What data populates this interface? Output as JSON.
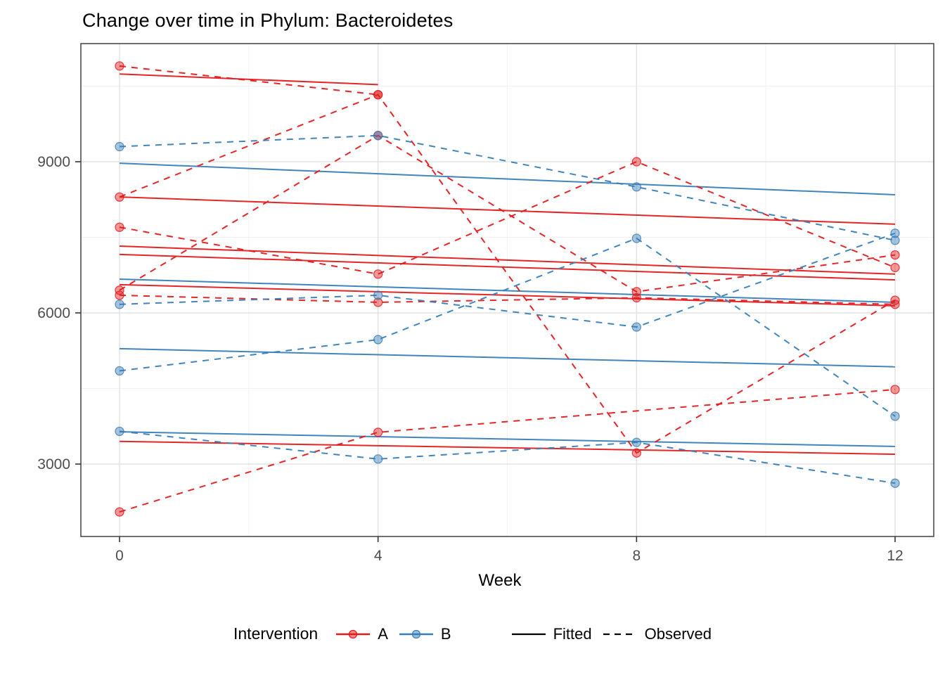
{
  "title": "Change over time in Phylum: Bacteroidetes",
  "axes": {
    "x": {
      "label": "Week",
      "ticks": [
        0,
        4,
        8,
        12
      ],
      "minor_ticks": [
        2,
        6,
        10
      ],
      "range": [
        0,
        12
      ]
    },
    "y": {
      "ticks": [
        3000,
        6000,
        9000
      ],
      "minor_ticks": [
        4500,
        7500,
        10500
      ],
      "range": [
        1565,
        11345
      ]
    }
  },
  "legend": {
    "title": "Intervention",
    "groups": [
      {
        "label": "A",
        "color": "#E41A1C"
      },
      {
        "label": "B",
        "color": "#377EB8"
      }
    ],
    "linetypes": [
      {
        "label": "Fitted",
        "style": "solid"
      },
      {
        "label": "Observed",
        "style": "dashed"
      }
    ]
  },
  "colors": {
    "A": "#E41A1C",
    "B": "#377EB8",
    "grid_major": "#e4e4e4",
    "grid_minor": "#f1f1f1",
    "panel_border": "#333333",
    "tick_text": "#4d4d4d"
  },
  "chart_data": {
    "type": "line",
    "title": "Change over time in Phylum: Bacteroidetes",
    "xlabel": "Week",
    "ylabel": "",
    "x": [
      0,
      4,
      8,
      12
    ],
    "xlim": [
      -0.6,
      12.6
    ],
    "ylim": [
      1565,
      11345
    ],
    "grid": true,
    "legend_position": "bottom",
    "series_meaning": "Each subject has an Observed dashed line (points at measured weeks; null = missing visit) and a Fitted solid line segment spanning its observed range.",
    "subjects": [
      {
        "id": "A1",
        "intervention": "A",
        "observed": [
          10900,
          10330,
          null,
          null
        ],
        "fitted_weeks": [
          0,
          4
        ],
        "fitted": [
          10740,
          10530
        ]
      },
      {
        "id": "A2",
        "intervention": "A",
        "observed": [
          8300,
          10330,
          3220,
          6250
        ],
        "fitted_weeks": [
          0,
          12
        ],
        "fitted": [
          8300,
          7760
        ]
      },
      {
        "id": "A3",
        "intervention": "A",
        "observed": [
          7700,
          6770,
          9000,
          6900
        ],
        "fitted_weeks": [
          0,
          12
        ],
        "fitted": [
          7325,
          6770
        ]
      },
      {
        "id": "A4",
        "intervention": "A",
        "observed": [
          6450,
          9520,
          6420,
          7150
        ],
        "fitted_weeks": [
          0,
          12
        ],
        "fitted": [
          7160,
          6655
        ]
      },
      {
        "id": "A5",
        "intervention": "A",
        "observed": [
          6350,
          6210,
          6300,
          6170
        ],
        "fitted_weeks": [
          0,
          12
        ],
        "fitted": [
          6560,
          6140
        ]
      },
      {
        "id": "A6",
        "intervention": "A",
        "observed": [
          2050,
          3630,
          null,
          4480
        ],
        "fitted_weeks": [
          0,
          12
        ],
        "fitted": [
          3450,
          3195
        ]
      },
      {
        "id": "B1",
        "intervention": "B",
        "observed": [
          9300,
          9520,
          8500,
          7440
        ],
        "fitted_weeks": [
          0,
          12
        ],
        "fitted": [
          8970,
          8345
        ]
      },
      {
        "id": "B2",
        "intervention": "B",
        "observed": [
          6170,
          6350,
          5720,
          7580
        ],
        "fitted_weeks": [
          0,
          12
        ],
        "fitted": [
          6670,
          6210
        ]
      },
      {
        "id": "B3",
        "intervention": "B",
        "observed": [
          4850,
          5470,
          7480,
          3950
        ],
        "fitted_weeks": [
          0,
          12
        ],
        "fitted": [
          5290,
          4930
        ]
      },
      {
        "id": "B4",
        "intervention": "B",
        "observed": [
          3650,
          3100,
          3430,
          2620
        ],
        "fitted_weeks": [
          0,
          12
        ],
        "fitted": [
          3640,
          3350
        ]
      }
    ]
  }
}
